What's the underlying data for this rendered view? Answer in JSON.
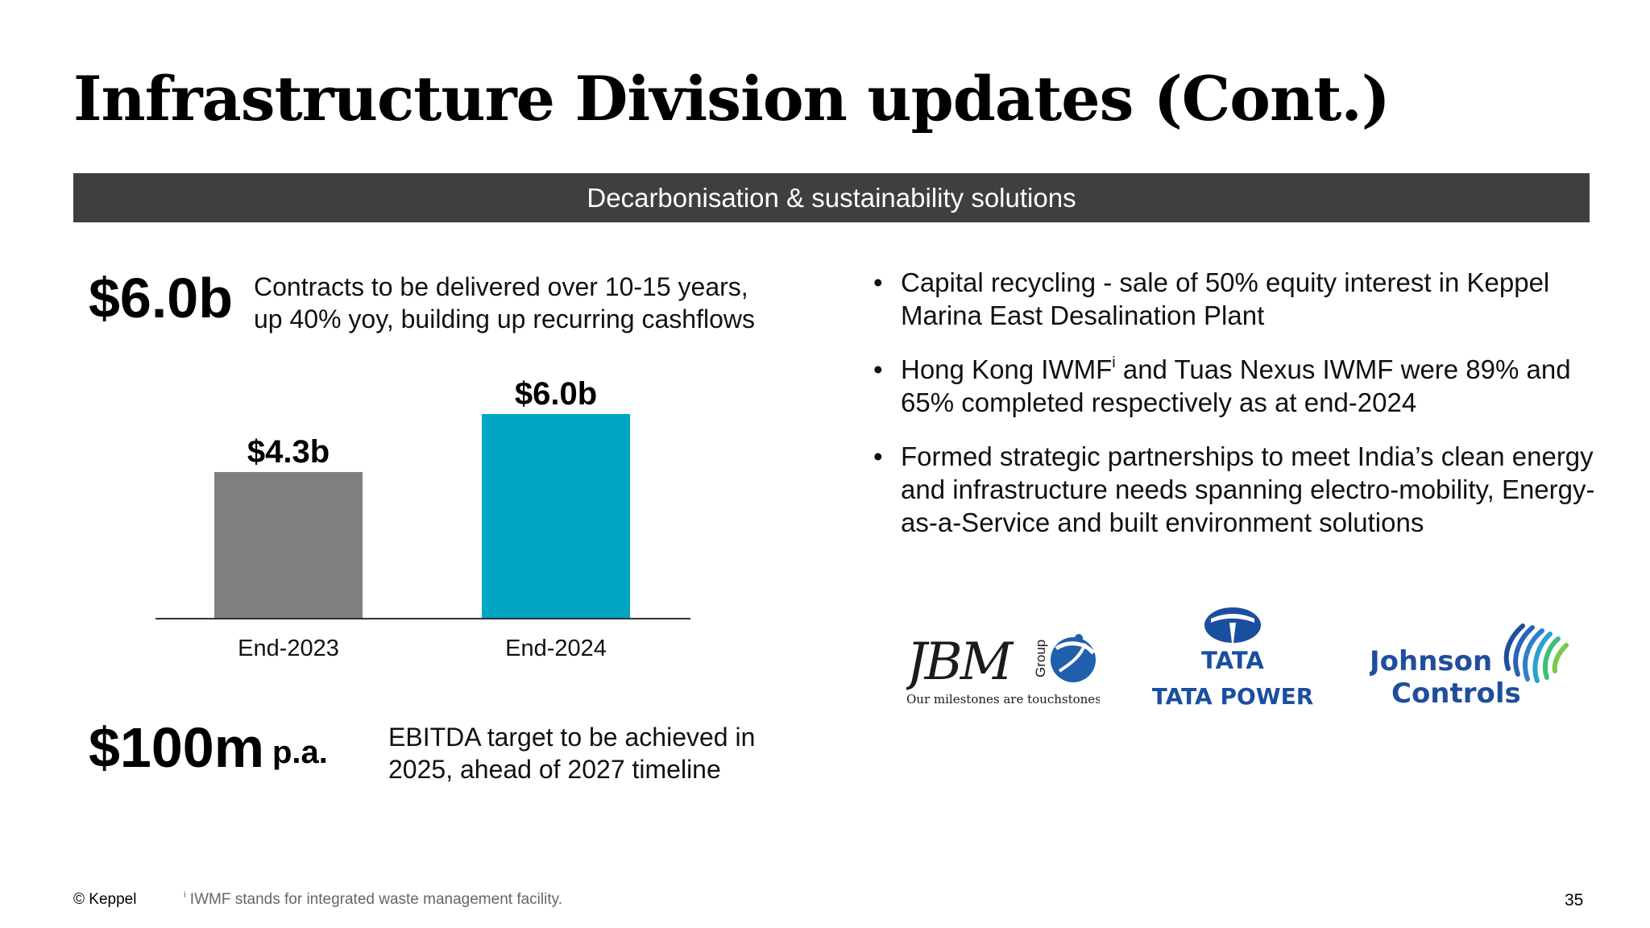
{
  "title": "Infrastructure Division updates (Cont.)",
  "banner": "Decarbonisation & sustainability solutions",
  "metric1": {
    "value": "$6.0b",
    "desc_line1": "Contracts to be delivered over 10-15 years,",
    "desc_line2": "up 40% yoy, building up recurring cashflows"
  },
  "chart_data": {
    "type": "bar",
    "categories": [
      "End-2023",
      "End-2024"
    ],
    "values": [
      4.3,
      6.0
    ],
    "data_labels": [
      "$4.3b",
      "$6.0b"
    ],
    "colors": [
      "#7f7f7f",
      "#00a5c2"
    ],
    "title": "",
    "xlabel": "",
    "ylabel": "",
    "ylim": [
      0,
      6.0
    ]
  },
  "metric2": {
    "value": "$100m",
    "suffix": "p.a.",
    "desc_line1": "EBITDA target to be achieved in",
    "desc_line2": "2025, ahead of 2027 timeline"
  },
  "bullets": {
    "marker": "•",
    "b1": "Capital recycling - sale of 50% equity interest in Keppel Marina East Desalination Plant",
    "b2_pre": "Hong Kong IWMF",
    "b2_sup": "i",
    "b2_post": " and Tuas Nexus IWMF were 89% and 65% completed respectively as at end-2024",
    "b3": "Formed strategic partnerships to meet India’s clean energy and infrastructure needs spanning electro-mobility, Energy-as-a-Service and built environment solutions"
  },
  "logos": {
    "jbm": {
      "text": "JBM",
      "group": "Group",
      "tagline": "Our milestones are touchstones"
    },
    "tata": {
      "text": "TATA",
      "power_text": "TATA POWER"
    },
    "jci": {
      "line1": "Johnson",
      "line2": "Controls"
    }
  },
  "footer": {
    "copyright": "© Keppel",
    "note_sup": "i",
    "note": " IWMF stands for integrated waste management facility.",
    "page_number": "35"
  },
  "colors": {
    "banner_bg": "#3f3f3f",
    "bar_2023": "#7f7f7f",
    "bar_2024": "#00a5c2",
    "brand_blue": "#1f4e9c"
  }
}
